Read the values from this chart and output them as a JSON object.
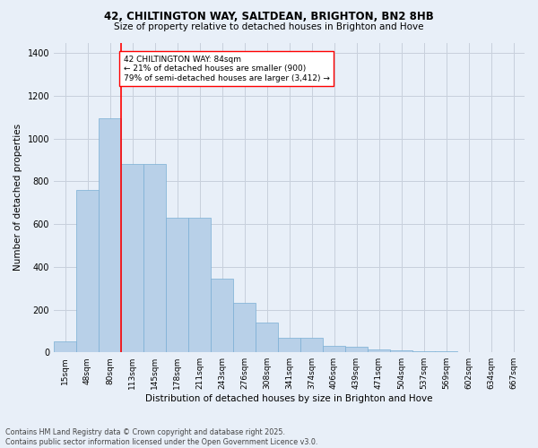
{
  "title_line1": "42, CHILTINGTON WAY, SALTDEAN, BRIGHTON, BN2 8HB",
  "title_line2": "Size of property relative to detached houses in Brighton and Hove",
  "xlabel": "Distribution of detached houses by size in Brighton and Hove",
  "ylabel": "Number of detached properties",
  "categories": [
    "15sqm",
    "48sqm",
    "80sqm",
    "113sqm",
    "145sqm",
    "178sqm",
    "211sqm",
    "243sqm",
    "276sqm",
    "308sqm",
    "341sqm",
    "374sqm",
    "406sqm",
    "439sqm",
    "471sqm",
    "504sqm",
    "537sqm",
    "569sqm",
    "602sqm",
    "634sqm",
    "667sqm"
  ],
  "values": [
    50,
    760,
    1095,
    880,
    880,
    630,
    630,
    345,
    230,
    140,
    70,
    70,
    30,
    25,
    15,
    10,
    5,
    5,
    2,
    2,
    2
  ],
  "bar_color": "#b8d0e8",
  "bar_edge_color": "#7aafd4",
  "vline_color": "red",
  "vline_x_idx": 2,
  "annotation_text": "42 CHILTINGTON WAY: 84sqm\n← 21% of detached houses are smaller (900)\n79% of semi-detached houses are larger (3,412) →",
  "annotation_box_color": "white",
  "annotation_box_edge": "red",
  "ylim": [
    0,
    1450
  ],
  "yticks": [
    0,
    200,
    400,
    600,
    800,
    1000,
    1200,
    1400
  ],
  "footer": "Contains HM Land Registry data © Crown copyright and database right 2025.\nContains public sector information licensed under the Open Government Licence v3.0.",
  "bg_color": "#e8eff8",
  "grid_color": "#c8d0dc"
}
